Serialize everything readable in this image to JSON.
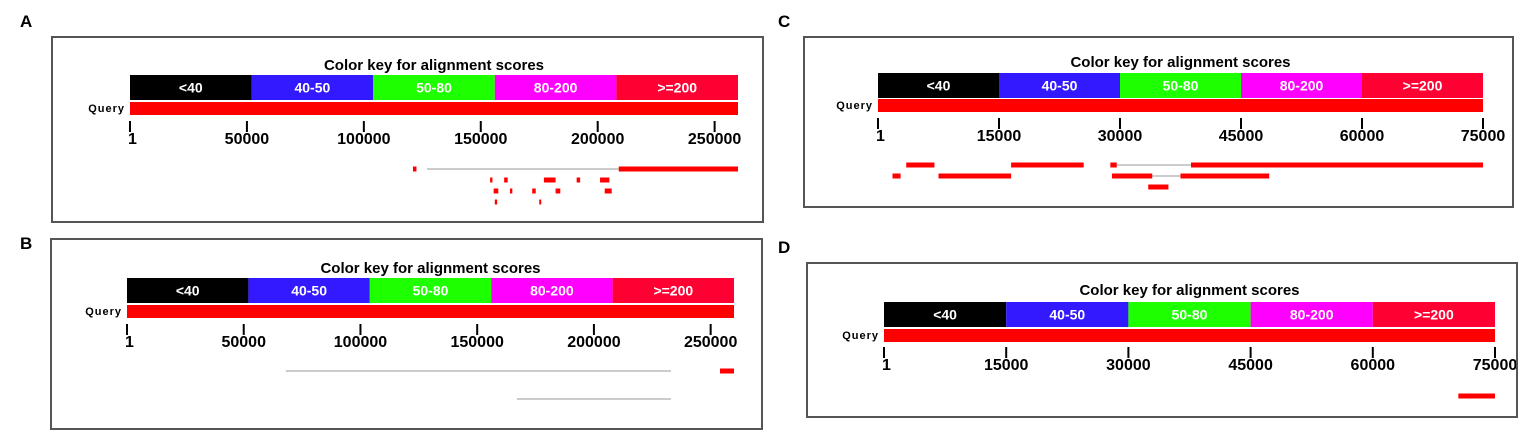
{
  "color_key": {
    "title": "Color key for alignment scores",
    "segments": [
      {
        "label": "<40",
        "color": "#000000"
      },
      {
        "label": "40-50",
        "color": "#3319ff"
      },
      {
        "label": "50-80",
        "color": "#1eff00"
      },
      {
        "label": "80-200",
        "color": "#ff00ff"
      },
      {
        "label": ">=200",
        "color": "#ff0033"
      }
    ]
  },
  "query_label": "Query",
  "hit_color": "#ff0000",
  "line_color": "#9a9a9a",
  "panels": [
    {
      "letter": "A",
      "ticks": [
        "1",
        "50000",
        "100000",
        "150000",
        "200000",
        "250000"
      ],
      "axis_max": 260000,
      "hits": [
        {
          "row": 0,
          "start": 121000,
          "end": 122500,
          "kind": "bar"
        },
        {
          "row": 0,
          "start": 127000,
          "end": 209000,
          "kind": "line"
        },
        {
          "row": 0,
          "start": 209000,
          "end": 260000,
          "kind": "bar"
        },
        {
          "row": 1,
          "start": 154000,
          "end": 155000,
          "kind": "bar"
        },
        {
          "row": 1,
          "start": 160000,
          "end": 161500,
          "kind": "bar"
        },
        {
          "row": 1,
          "start": 177000,
          "end": 182000,
          "kind": "bar"
        },
        {
          "row": 1,
          "start": 191000,
          "end": 192500,
          "kind": "bar"
        },
        {
          "row": 1,
          "start": 201000,
          "end": 205000,
          "kind": "bar"
        },
        {
          "row": 2,
          "start": 155500,
          "end": 157500,
          "kind": "bar"
        },
        {
          "row": 2,
          "start": 162500,
          "end": 163500,
          "kind": "bar"
        },
        {
          "row": 2,
          "start": 172000,
          "end": 173500,
          "kind": "bar"
        },
        {
          "row": 2,
          "start": 182000,
          "end": 184000,
          "kind": "bar"
        },
        {
          "row": 2,
          "start": 203000,
          "end": 206000,
          "kind": "bar"
        },
        {
          "row": 3,
          "start": 156000,
          "end": 157000,
          "kind": "bar"
        },
        {
          "row": 3,
          "start": 175000,
          "end": 175800,
          "kind": "bar"
        }
      ]
    },
    {
      "letter": "B",
      "ticks": [
        "1",
        "50000",
        "100000",
        "150000",
        "200000",
        "250000"
      ],
      "axis_max": 260000,
      "hits": [
        {
          "row": 0,
          "start": 68000,
          "end": 233000,
          "kind": "line"
        },
        {
          "row": 0,
          "start": 254000,
          "end": 260000,
          "kind": "bar"
        },
        {
          "row": 2,
          "start": 167000,
          "end": 233000,
          "kind": "line"
        }
      ]
    },
    {
      "letter": "C",
      "ticks": [
        "1",
        "15000",
        "30000",
        "45000",
        "60000",
        "75000"
      ],
      "axis_max": 75000,
      "hits": [
        {
          "row": 0,
          "start": 3500,
          "end": 7000,
          "kind": "bar"
        },
        {
          "row": 0,
          "start": 16500,
          "end": 25500,
          "kind": "bar"
        },
        {
          "row": 0,
          "start": 28800,
          "end": 29600,
          "kind": "bar"
        },
        {
          "row": 0,
          "start": 29600,
          "end": 38800,
          "kind": "line"
        },
        {
          "row": 0,
          "start": 38800,
          "end": 75000,
          "kind": "bar"
        },
        {
          "row": 1,
          "start": 1800,
          "end": 2800,
          "kind": "bar"
        },
        {
          "row": 1,
          "start": 7500,
          "end": 16500,
          "kind": "bar"
        },
        {
          "row": 1,
          "start": 29000,
          "end": 34000,
          "kind": "bar"
        },
        {
          "row": 1,
          "start": 34000,
          "end": 37500,
          "kind": "line"
        },
        {
          "row": 1,
          "start": 37500,
          "end": 48500,
          "kind": "bar"
        },
        {
          "row": 2,
          "start": 33500,
          "end": 36000,
          "kind": "bar"
        }
      ]
    },
    {
      "letter": "D",
      "ticks": [
        "1",
        "15000",
        "30000",
        "45000",
        "60000",
        "75000"
      ],
      "axis_max": 75000,
      "hits": [
        {
          "row": 0,
          "start": 70500,
          "end": 75000,
          "kind": "bar"
        }
      ]
    }
  ]
}
